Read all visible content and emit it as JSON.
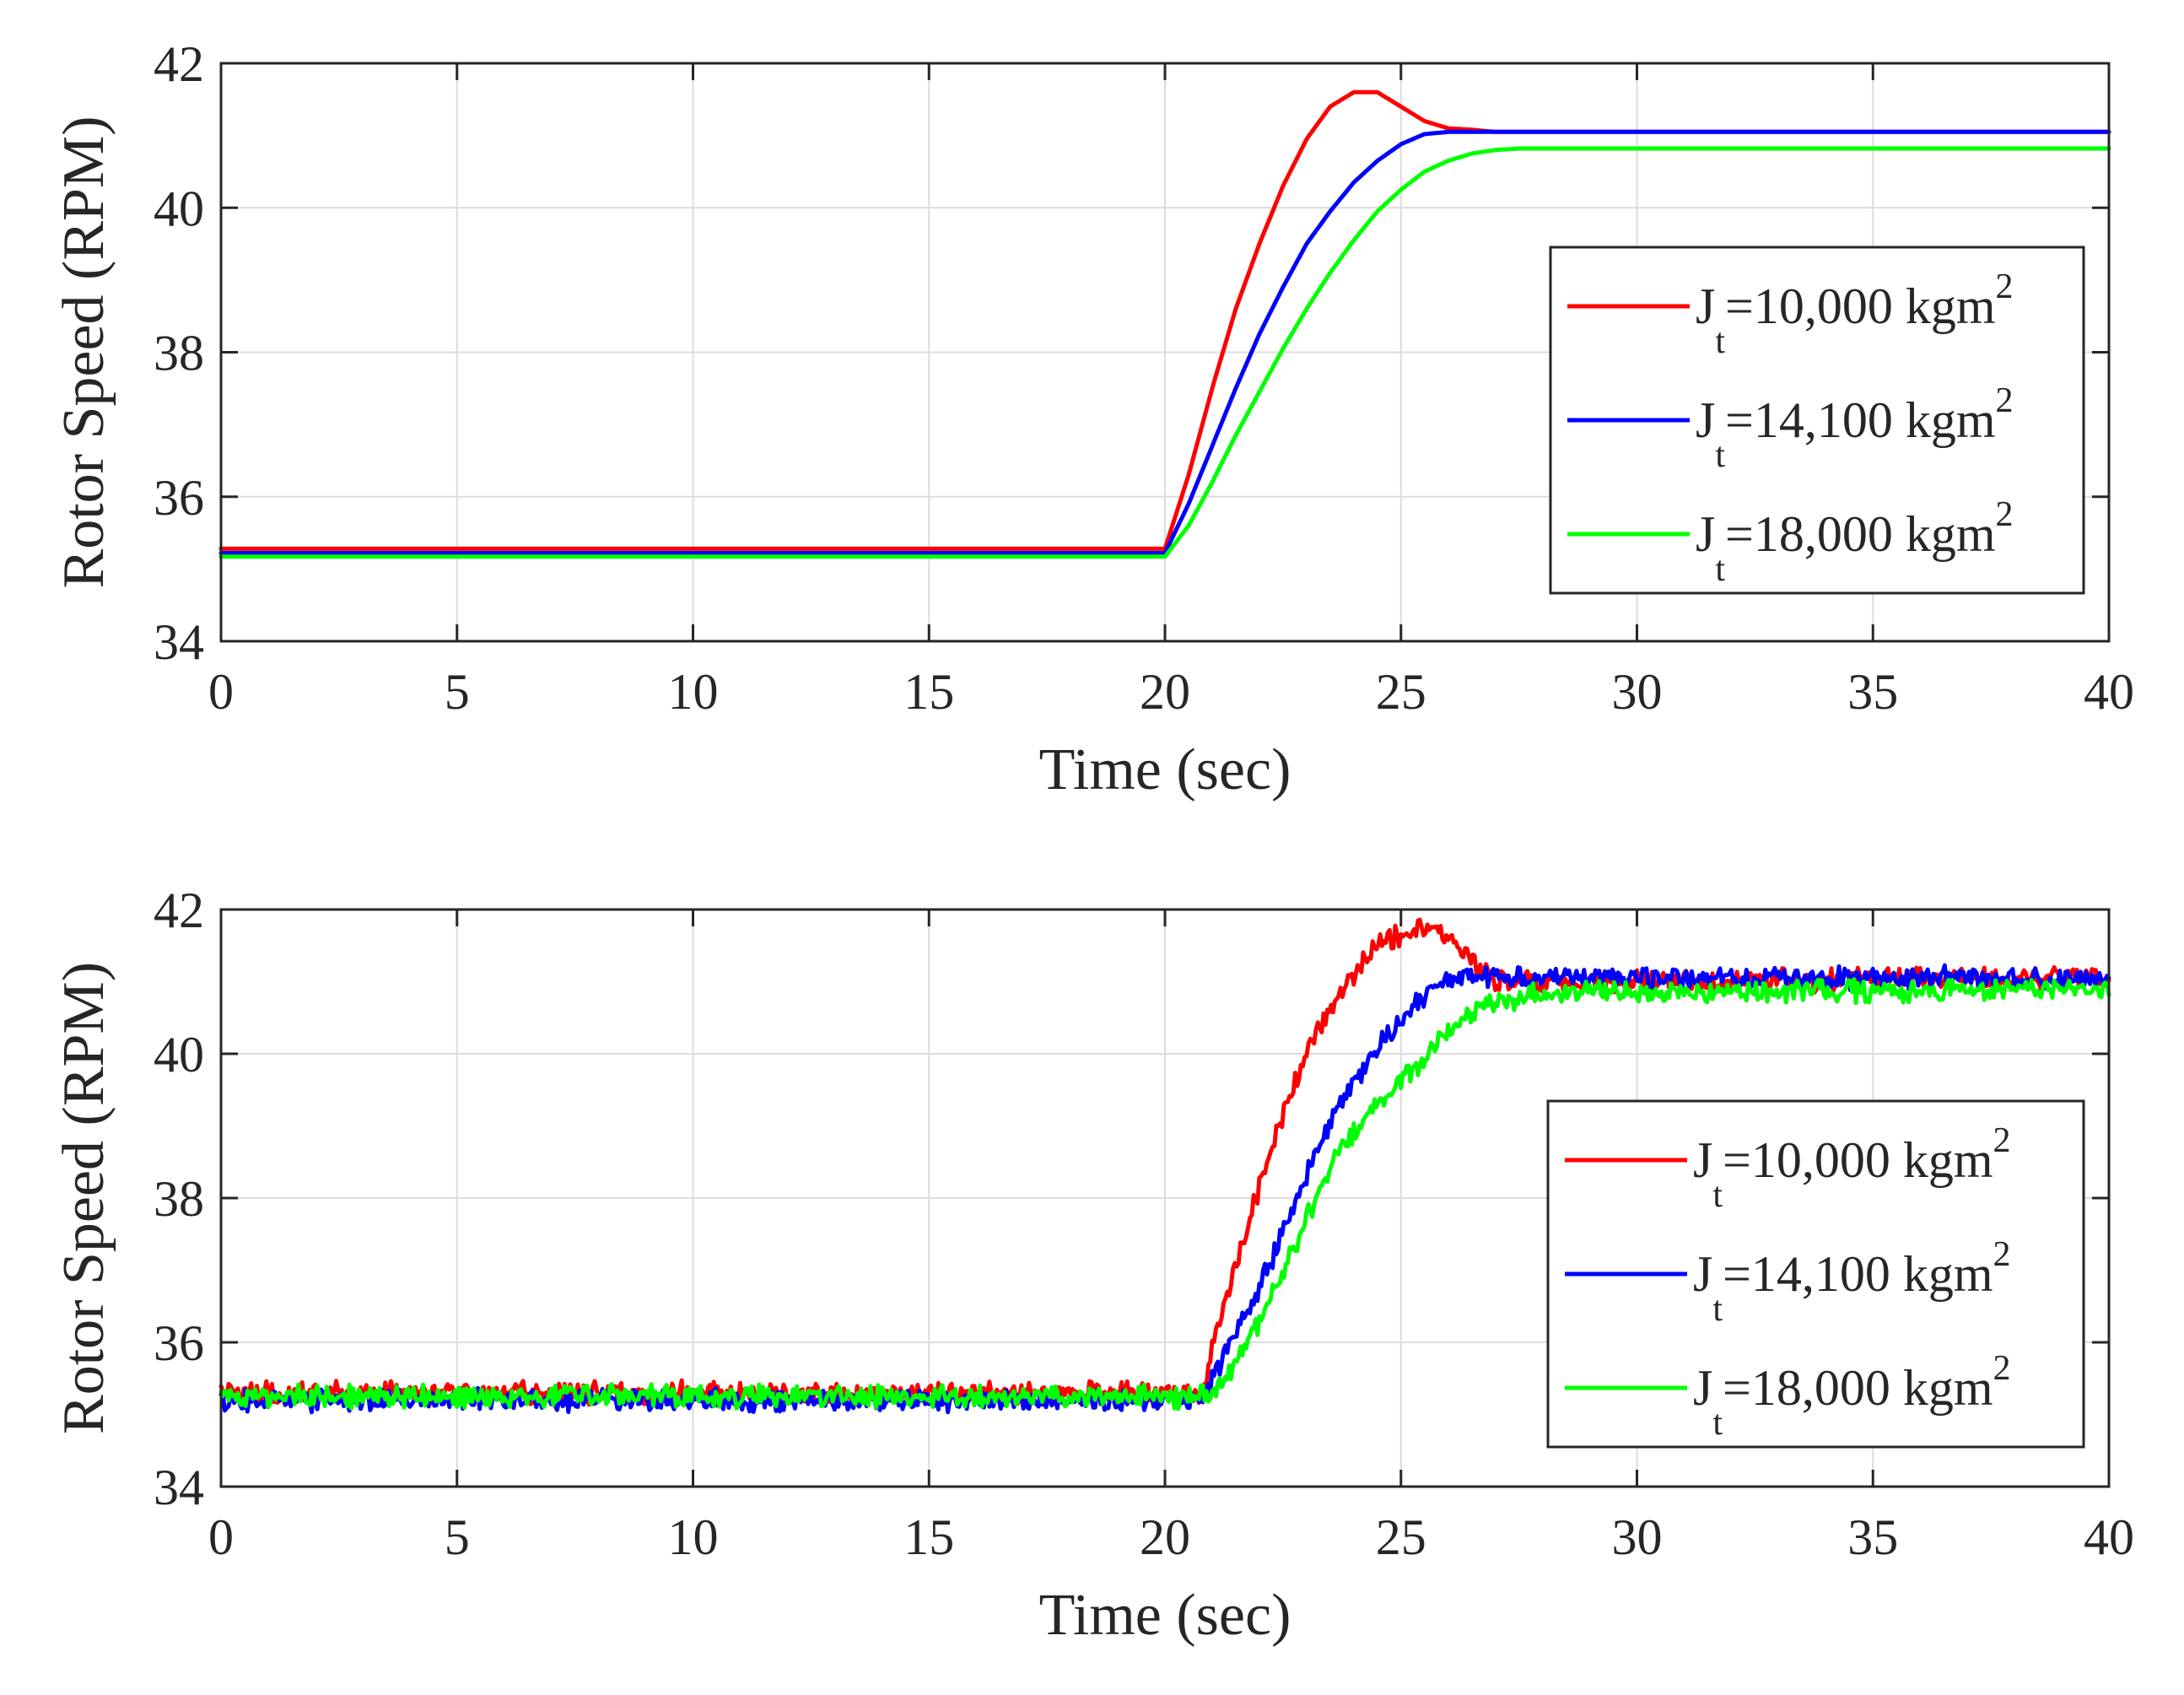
{
  "chart_data": [
    {
      "type": "line",
      "title": "",
      "xlabel": "Time (sec)",
      "ylabel": "Rotor Speed (RPM)",
      "xlim": [
        0,
        40
      ],
      "ylim": [
        34,
        42
      ],
      "xticks": [
        0,
        5,
        10,
        15,
        20,
        25,
        30,
        35,
        40
      ],
      "yticks": [
        34,
        36,
        38,
        40,
        42
      ],
      "xtick_labels": [
        "0",
        "5",
        "10",
        "15",
        "20",
        "25",
        "30",
        "35",
        "40"
      ],
      "ytick_labels": [
        "34",
        "36",
        "38",
        "40",
        "42"
      ],
      "grid": true,
      "legend_position": "right",
      "noisy": false,
      "series": [
        {
          "name": "J_t=10,000 kgm^2",
          "legend": {
            "prefix": "J",
            "sub": "t",
            "body": "=10,000 kgm",
            "sup": "2"
          },
          "color": "#ff0000",
          "x": [
            0,
            20,
            20.5,
            21,
            21.5,
            22,
            22.5,
            23,
            23.5,
            24,
            24.5,
            25,
            25.5,
            26,
            26.5,
            27,
            40
          ],
          "y": [
            35.28,
            35.28,
            36.3,
            37.5,
            38.6,
            39.5,
            40.3,
            40.95,
            41.4,
            41.6,
            41.6,
            41.4,
            41.2,
            41.1,
            41.08,
            41.05,
            41.05
          ]
        },
        {
          "name": "J_t=14,100 kgm^2",
          "legend": {
            "prefix": "J",
            "sub": "t",
            "body": "=14,100 kgm",
            "sup": "2"
          },
          "color": "#0000ff",
          "x": [
            0,
            20,
            20.5,
            21,
            21.5,
            22,
            22.5,
            23,
            23.5,
            24,
            24.5,
            25,
            25.5,
            26,
            26.5,
            27,
            40
          ],
          "y": [
            35.22,
            35.22,
            35.9,
            36.7,
            37.5,
            38.25,
            38.9,
            39.5,
            39.95,
            40.35,
            40.65,
            40.88,
            41.02,
            41.05,
            41.05,
            41.05,
            41.05
          ]
        },
        {
          "name": "J_t=18,000 kgm^2",
          "legend": {
            "prefix": "J",
            "sub": "t",
            "body": "=18,000 kgm",
            "sup": "2"
          },
          "color": "#00ff00",
          "x": [
            0,
            20,
            20.5,
            21,
            21.5,
            22,
            22.5,
            23,
            23.5,
            24,
            24.5,
            25,
            25.5,
            26,
            26.5,
            27,
            27.5,
            28,
            40
          ],
          "y": [
            35.17,
            35.17,
            35.6,
            36.2,
            36.85,
            37.45,
            38.05,
            38.6,
            39.1,
            39.55,
            39.95,
            40.25,
            40.5,
            40.65,
            40.75,
            40.8,
            40.82,
            40.82,
            40.82
          ]
        }
      ]
    },
    {
      "type": "line",
      "title": "",
      "xlabel": "Time (sec)",
      "ylabel": "Rotor Speed (RPM)",
      "xlim": [
        0,
        40
      ],
      "ylim": [
        34,
        42
      ],
      "xticks": [
        0,
        5,
        10,
        15,
        20,
        25,
        30,
        35,
        40
      ],
      "yticks": [
        34,
        36,
        38,
        40,
        42
      ],
      "xtick_labels": [
        "0",
        "5",
        "10",
        "15",
        "20",
        "25",
        "30",
        "35",
        "40"
      ],
      "ytick_labels": [
        "34",
        "36",
        "38",
        "40",
        "42"
      ],
      "grid": true,
      "legend_position": "right",
      "noisy": true,
      "series": [
        {
          "name": "J_t=10,000 kgm^2",
          "legend": {
            "prefix": "J",
            "sub": "t",
            "body": "=10,000 kgm",
            "sup": "2"
          },
          "color": "#ff0000",
          "x": [
            0,
            20.8,
            21.2,
            21.7,
            22.2,
            22.7,
            23.2,
            23.7,
            24.2,
            24.7,
            25.2,
            25.7,
            26.2,
            26.7,
            27.2,
            40
          ],
          "y": [
            35.3,
            35.3,
            36.4,
            37.5,
            38.6,
            39.5,
            40.3,
            40.8,
            41.3,
            41.6,
            41.7,
            41.75,
            41.5,
            41.1,
            41.0,
            41.05
          ]
        },
        {
          "name": "J_t=14,100 kgm^2",
          "legend": {
            "prefix": "J",
            "sub": "t",
            "body": "=14,100 kgm",
            "sup": "2"
          },
          "color": "#0000ff",
          "x": [
            0,
            20.8,
            21.3,
            21.8,
            22.3,
            22.8,
            23.3,
            23.8,
            24.3,
            24.8,
            25.3,
            25.8,
            26.3,
            26.8,
            40
          ],
          "y": [
            35.2,
            35.2,
            35.9,
            36.5,
            37.2,
            38.0,
            38.8,
            39.4,
            39.9,
            40.3,
            40.7,
            40.95,
            41.05,
            41.05,
            41.05
          ]
        },
        {
          "name": "J_t=18,000 kgm^2",
          "legend": {
            "prefix": "J",
            "sub": "t",
            "body": "=18,000 kgm",
            "sup": "2"
          },
          "color": "#00ff00",
          "x": [
            0,
            21.0,
            21.5,
            22.0,
            22.5,
            23.0,
            23.5,
            24.0,
            24.5,
            25.0,
            25.5,
            26.0,
            26.5,
            27.0,
            27.5,
            28.0,
            40
          ],
          "y": [
            35.25,
            35.25,
            35.7,
            36.3,
            37.0,
            37.7,
            38.4,
            38.9,
            39.3,
            39.6,
            39.9,
            40.35,
            40.55,
            40.7,
            40.8,
            40.85,
            40.9
          ]
        }
      ]
    }
  ]
}
